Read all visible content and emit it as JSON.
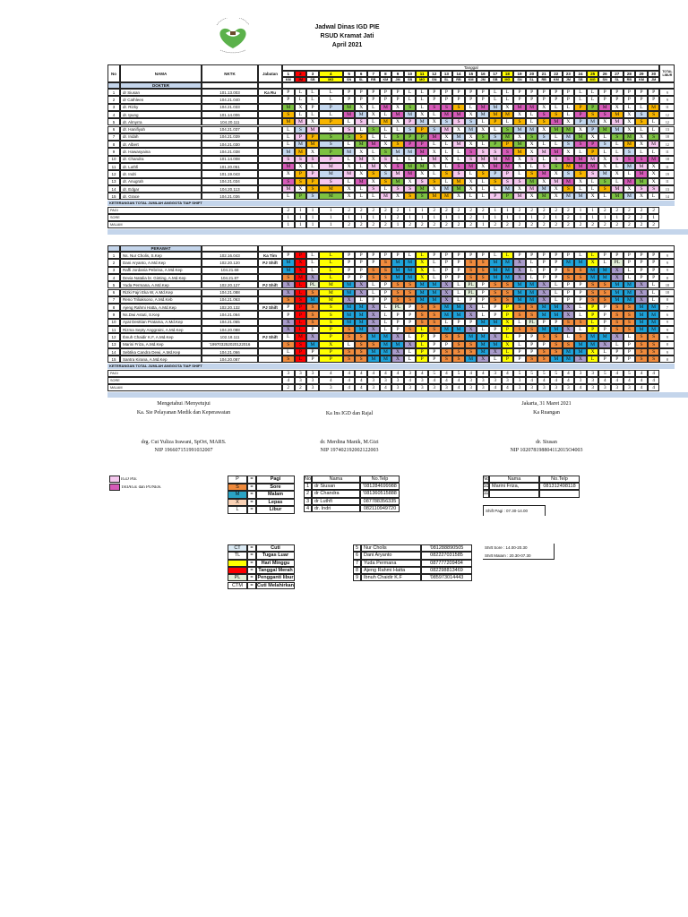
{
  "header": {
    "title": "Jadwal Dinas IGD PIE",
    "hospital": "RSUD Kramat Jati",
    "period": "April  2021",
    "logo_text": "RUMAH SAKIT UMUM DAERAH KRAMAT JATI"
  },
  "table": {
    "col_no": "No",
    "col_nama": "NAMA",
    "col_nktk": "NKTK",
    "col_jabatan": "Jabatan",
    "col_tanggal": "Tanggal",
    "col_total": "TOTAL LIBUR",
    "days": [
      "1",
      "2",
      "3",
      "4",
      "5",
      "6",
      "7",
      "8",
      "9",
      "10",
      "11",
      "12",
      "13",
      "14",
      "15",
      "16",
      "17",
      "18",
      "19",
      "20",
      "21",
      "22",
      "23",
      "24",
      "25",
      "26",
      "27",
      "28",
      "29",
      "30"
    ],
    "day_names": [
      "KM",
      "JM",
      "SB",
      "MG",
      "SN",
      "SL",
      "RB",
      "KM",
      "JM",
      "SB",
      "MG",
      "SN",
      "SL",
      "RB",
      "KM",
      "JM",
      "SB",
      "MG",
      "SN",
      "SL",
      "RB",
      "KM",
      "JM",
      "SB",
      "MG",
      "SN",
      "SL",
      "RB",
      "KM",
      "JM"
    ],
    "red_days": [
      2
    ],
    "yellow_days": [
      4,
      11,
      18,
      25
    ],
    "summary_title": "KETERANGAN TOTAL JUMLAH  ANGGOTA TIAP SHIFT",
    "summary_labels": [
      "PAGI",
      "SORE",
      "MALAM"
    ]
  },
  "colors": {
    "g": "#7dc242",
    "o": "#f7b500",
    "m": "#d65ab8",
    "p": "#f6c8ef",
    "b": "#c5d8ef",
    "S": "#f08b3d",
    "M": "#1ea2d9",
    "X": "#a99bca",
    "PL": "#e3efd9",
    "red": "#ff0000",
    "yellow": "#ffff00",
    "band": "#c4d5eb"
  },
  "doctors": {
    "section": "DOKTER",
    "rows": [
      {
        "no": "1",
        "name": "dr Siusan",
        "nktk": "101.13.003",
        "role": "Ka Ru",
        "shifts": "P L L L P P P P P L L P P P P P L L P P P P P L L P P P P P",
        "total": "9"
      },
      {
        "no": "2",
        "name": "dr Cathleen",
        "nktk": "104.21.040",
        "role": "",
        "shifts": "P L L L P P P P P L L P P P P P L L P P P P P L L P P P P P",
        "total": "9"
      },
      {
        "no": "3",
        "name": "dr. Rizky",
        "nktk": "104.21.033",
        "role": "",
        "shifts": "M.g X P P.b M.g X L M.m X S.g L S.m S.m S.o L M.m M.b X M.m M.m X L L P.o P.g M.m X L L M.o",
        "total": "11"
      },
      {
        "no": "4",
        "name": "dr. Ipung",
        "nktk": "101.14.006",
        "role": "",
        "shifts": "S.o L L L M.m M.b X L M.m M.b X L M.m M.m X M.b M.o M.o X L S.m S.o L P.m S.o S.m M.o X S.b S.o",
        "total": "12"
      },
      {
        "no": "5",
        "name": "dr. Almyrra",
        "nktk": "104.20.111",
        "role": "",
        "shifts": "M.o M.p X P.o L S.p L M.o X P.p M.b X S.b S.p S.b L P.o L S.o L S.o M.m X P.b M.b X M.p X S.o L",
        "total": "12"
      },
      {
        "no": "6",
        "name": "dr. Hanifiyah",
        "nktk": "104.21.037",
        "role": "",
        "shifts": "L S.b M.p X S.p L S.g L L S.b P.o S.b M.p X M.b X L S.g M.b M.b X M.g M.g X P.b M.g M.b X L L",
        "total": "13"
      },
      {
        "no": "7",
        "name": "dr. Indah",
        "nktk": "104.21.039",
        "role": "",
        "shifts": "L P.p P.o S.g S.g S.o L L S.g P.g P.g M.m X M.b X S.g S.b M.g X S.g S.b L M.b M.g X L S.g M.g X S.g",
        "total": "18"
      },
      {
        "no": "8",
        "name": "dr. Albert",
        "nktk": "104.21.030",
        "role": "",
        "shifts": "L M.b M.o S.b L M.g M.m X S.o P.m P.m L L M.p X L P.g P.o M.g X L L S.b S.m P.m S.b L M.o X M.p",
        "total": "12"
      },
      {
        "no": "9",
        "name": "dr. Hawasyaina",
        "nktk": "104.21.038",
        "role": "",
        "shifts": "M.b M.o X P.g M.b X L S.g M.b M.b M.m X L L S.m S.p S.p S.m M.o X M.p M.m X L P.o L L S.b L L",
        "total": "11"
      },
      {
        "no": "10",
        "name": "dr. Chandra",
        "nktk": "101.14.008",
        "role": "",
        "shifts": "S.p S.p S.p P.p L M.p X S.p L L L M.p X L S.p M.p M.p M.m X S.p L S.p S.m M.m M.p X S.p S.m S.m M.m",
        "total": "18"
      },
      {
        "no": "11",
        "name": "dr. Luthfi",
        "nktk": "101.20.051",
        "role": "",
        "shifts": "M.m X L M.p X L M.p X S.m M.g M.g X L S.m M.m X M.m M.m X L S.p S.g M.o M.m M.m X L M.b M.p X",
        "total": "11"
      },
      {
        "no": "12",
        "name": "dr. Indri",
        "nktk": "101.19.043",
        "role": "",
        "shifts": "X P.o P.p M.b M.p X S.o S.b M.p M.m X L S.o S.p L S.o P.b P.p L S.o M.m X S.b S.o S.p M.b X L M.m X",
        "total": "19"
      },
      {
        "no": "13",
        "name": "dr. Anugrah",
        "nktk": "104.21.034",
        "role": "",
        "shifts": "S.m S.o P.o S.p L M.m X S.o M.g X S.p S.o L M.o X L S.o S.p S.p M.g X M.p M.m X L S.g L M.m M.g X",
        "total": "11"
      },
      {
        "no": "14",
        "name": "dr. Edgar",
        "nktk": "104.20.113",
        "role": "",
        "shifts": "M.p X S.o M.o X L S.p L S.p S.p M.g X M.b M.g X L L M.b X M.p M.b X S.o L L S.o M.p X S.p S.p",
        "total": "13"
      },
      {
        "no": "15",
        "name": "dr. Grace",
        "nktk": "104.21.036",
        "role": "",
        "shifts": "L P.g S.b M.g X L L M.p X S.o S.g M.o M.o X L L P.p P.g M.p X M.g X M.b M.b X L M.g M.b X L",
        "total": "14"
      }
    ],
    "summary": [
      [
        2,
        1,
        1,
        1,
        2,
        2,
        2,
        2,
        2,
        1,
        1,
        2,
        2,
        2,
        2,
        2,
        1,
        1,
        2,
        2,
        2,
        2,
        2,
        1,
        1,
        2,
        2,
        2,
        2,
        2
      ],
      [
        1,
        1,
        1,
        1,
        1,
        1,
        1,
        1,
        2,
        1,
        1,
        1,
        1,
        1,
        2,
        1,
        1,
        1,
        1,
        1,
        2,
        1,
        2,
        1,
        1,
        1,
        1,
        2,
        2,
        1
      ],
      [
        1,
        1,
        1,
        1,
        2,
        2,
        2,
        2,
        1,
        2,
        2,
        2,
        2,
        2,
        2,
        1,
        2,
        2,
        2,
        2,
        2,
        2,
        2,
        2,
        2,
        2,
        2,
        2,
        2,
        2
      ]
    ]
  },
  "nurses": {
    "section": "PERAWAT",
    "rows": [
      {
        "no": "1",
        "name": "Ns. Nur Cholis, S.Kep",
        "nktk": "102.16.043",
        "role": "Ka Tim",
        "shifts": "P P L L P P P P P L L P P P P P L L P P P P P L L P P P P P",
        "total": "9"
      },
      {
        "no": "2",
        "name": "Dani Aryanto, A.Md.Kep",
        "nktk": "102.20.120",
        "role": "PJ Shift",
        "shifts": "M X L L P P P S M M X L P P S S M M X L P P M M X L PL P P P",
        "total": "9"
      },
      {
        "no": "3",
        "name": "Raffi Jordania Pebrina, A.Md.Kep",
        "nktk": "104.21.68",
        "role": "",
        "shifts": "M X L L P P S S M M X L P P S S M M X L P P S S M M X L P P",
        "total": "9"
      },
      {
        "no": "4",
        "name": "Devia Natalia br. Ginting, A.Md.Kep",
        "nktk": "104.21.87",
        "role": "",
        "shifts": "S M X L P P S S M M X L P P S S M M X L P P S S M M X L P P",
        "total": "8"
      },
      {
        "no": "5",
        "name": "Yuda Permana, A.Md.Kep",
        "nktk": "102.20.127",
        "role": "PJ Shift",
        "shifts": "X L PL M M X L P S S M M X L PL P S S M M X L P P S S M M X L",
        "total": "18"
      },
      {
        "no": "6",
        "name": "Rizki Fajri Eka W, A.Md.Kep",
        "nktk": "104.21.088",
        "role": "",
        "shifts": "X L S M M X L P S S M M X L PL P S S M M X L P P S S M M X L",
        "total": "18"
      },
      {
        "no": "7",
        "name": "Reno Triliaksono, A.Md.Keb",
        "nktk": "104.21.063",
        "role": "",
        "shifts": "S S M M X L P P S S M M X L P P S S M M X L P P S S M M X L",
        "total": "8"
      },
      {
        "no": "8",
        "name": "Ajeng Rahmi Hatta, A.Md.Kep",
        "nktk": "102.20.132",
        "role": "PJ Shift",
        "shifts": "P P S S M M X L PL P S S M M X L P P S S M M X L P P S S M M",
        "total": "7"
      },
      {
        "no": "9",
        "name": "Ns.Dwi Astuti, S.Kep",
        "nktk": "104.21.064",
        "role": "",
        "shifts": "P P S S M M X L P P S S M M X L P P S S M M X L P P S S M M",
        "total": "6"
      },
      {
        "no": "10",
        "name": "Ayat Desttian Pratama, A.Md.Kep",
        "nktk": "104.21.065",
        "role": "",
        "shifts": "X L S S M M X L P P S S L P P M M X L PL P P S S L P S S M M",
        "total": "9"
      },
      {
        "no": "11",
        "name": "Rizma Septy Anggraini, A.Md.Kep",
        "nktk": "104.20.088",
        "role": "",
        "shifts": "X L P P S M X L P S L S M M X L P P S S M M X L P P S S M M",
        "total": "9"
      },
      {
        "no": "12",
        "name": "Ibnuh Chaidir K.F, A.Md.Kep",
        "nktk": "102.18.111",
        "role": "PJ Shift",
        "shifts": "L M X P S S M M X L P P S S M M X L P P S S L S M M X L S S",
        "total": "9"
      },
      {
        "no": "13",
        "name": "Marini Friza, A.Md.Kep",
        "nktk": "'199703252020122016",
        "role": "",
        "shifts": "S S M X L S S M M X L P P S S M M X L P P S S M M X L P S S",
        "total": "8"
      },
      {
        "no": "14",
        "name": "Sebtika Candra Dewi, A.Md.Kep",
        "nktk": "104.21.066",
        "role": "",
        "shifts": "L P P P S S M M X L P P S S S M X L P P S S M M X L P P S S",
        "total": "9"
      },
      {
        "no": "15",
        "name": "Santra Kirana, A.Md.Kep",
        "nktk": "104.20.087",
        "role": "",
        "shifts": "S L P P S S M M X L P P S S M X L P P S S M M X L P P P S S",
        "total": "8"
      }
    ],
    "summary": [
      [
        3,
        3,
        3,
        4,
        4,
        4,
        4,
        4,
        4,
        3,
        4,
        5,
        4,
        5,
        4,
        4,
        3,
        4,
        5,
        5,
        5,
        5,
        4,
        3,
        3,
        5,
        4,
        5,
        4,
        4
      ],
      [
        4,
        3,
        3,
        4,
        4,
        4,
        3,
        3,
        3,
        4,
        3,
        4,
        4,
        4,
        3,
        3,
        3,
        3,
        3,
        4,
        4,
        4,
        4,
        3,
        3,
        4,
        4,
        4,
        4,
        4
      ],
      [
        2,
        2,
        3,
        3,
        4,
        4,
        3,
        4,
        3,
        3,
        3,
        3,
        3,
        4,
        3,
        3,
        4,
        4,
        3,
        3,
        3,
        3,
        3,
        4,
        3,
        3,
        3,
        3,
        4,
        4
      ]
    ]
  },
  "signatures": {
    "approve": "Mengetahui /Menyetujui",
    "left_role": "Ka. Sie  Pelayanan Medik dan Keperawatan",
    "left_name": "drg. Cut Yuliza Irawani, SpOrt, MARS.",
    "left_nip": "NIP  196607151991032007",
    "mid_role": "Ka Ins IGD dan Rajal",
    "mid_name": "dr. Merdina Manik, M.Gizi",
    "mid_nip": "NIP 197402192002122003",
    "place_date": "Jakarta, 31 Maret 2021",
    "right_role": "Ka Ruangan",
    "right_name": "dr. Siusan",
    "right_nip": "NIP 102078198804112015O4003"
  },
  "legend": {
    "areas": [
      {
        "label": "IGD PIE",
        "color": "#f6c8ef"
      },
      {
        "label": "TRIAGE dan PONEK",
        "color": "#d65ab8"
      }
    ],
    "codes": [
      {
        "code": "P",
        "eq": "=",
        "desc": "Pagi",
        "color": "#ffffff"
      },
      {
        "code": "S",
        "eq": "=",
        "desc": "Sore",
        "color": "#f08b3d"
      },
      {
        "code": "M",
        "eq": "=",
        "desc": "Malam",
        "color": "#2aa3c4"
      },
      {
        "code": "X",
        "eq": "=",
        "desc": "Lepas",
        "color": "#fbd3b6"
      },
      {
        "code": "L",
        "eq": "=",
        "desc": "Libur",
        "color": "#ffffff"
      }
    ],
    "codes2": [
      {
        "code": "CT",
        "eq": "=",
        "desc": "Cuti",
        "color": "#dbeaf4"
      },
      {
        "code": "TL",
        "eq": "=",
        "desc": "Tugas Luar",
        "color": "#ffffff"
      },
      {
        "code": "",
        "eq": "=",
        "desc": "Hari Minggu",
        "color": "#ffff00"
      },
      {
        "code": "",
        "eq": "=",
        "desc": "Tanggal Merah",
        "color": "#ff0000"
      },
      {
        "code": "PL",
        "eq": "=",
        "desc": "Pengganti libur",
        "color": "#e3efd9"
      },
      {
        "code": "CTM",
        "eq": "=",
        "desc": "Cuti Melahirkan",
        "color": "#ffffff"
      }
    ],
    "phone_headers": [
      "No",
      "Nama",
      "No.Telp"
    ],
    "phones1": [
      [
        "1",
        "dr Siusan",
        "'081284699988"
      ],
      [
        "2",
        "dr Chandra",
        "'081360515888"
      ],
      [
        "3",
        "dr Luthfi",
        "087788356335"
      ],
      [
        "4",
        "dr. Indri",
        "082110949720"
      ]
    ],
    "phones2": [
      [
        "10",
        "Marini Friza,",
        "081312498118"
      ],
      [
        "11",
        "",
        ""
      ]
    ],
    "phones3": [
      [
        "5",
        "Nur Cholis",
        "'081288890505"
      ],
      [
        "6",
        "Dani Aryanto",
        "082227031585"
      ],
      [
        "7",
        "Yuda Permana",
        "087777209494"
      ],
      [
        "8",
        "Ajeng Rahmi Hatta",
        "082298813469"
      ],
      [
        "9",
        "Ibnuh Chaidir K.F",
        "'085973014443"
      ]
    ],
    "shift_pagi": "Shift Pagi : 07.30-14.00",
    "shift_sore": "Shift Sore : 14.00-20.30",
    "shift_malam": "Shift Malam : 20.30-07.30"
  }
}
